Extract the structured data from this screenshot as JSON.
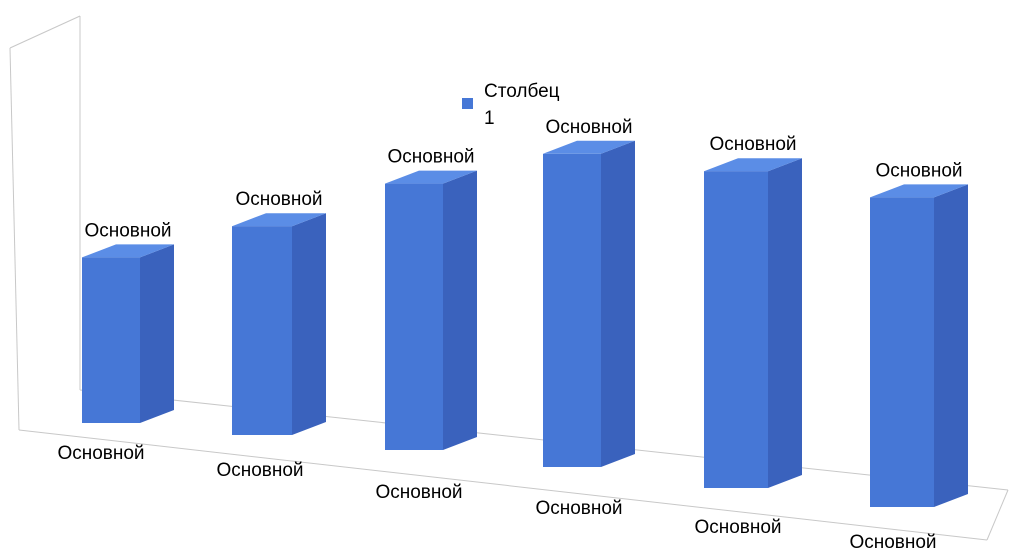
{
  "chart_data": {
    "type": "bar",
    "style": "3d-column",
    "categories": [
      "Основной",
      "Основной",
      "Основной",
      "Основной",
      "Основной",
      "Основной"
    ],
    "series": [
      {
        "name": "Столбец 1",
        "values": [
          46,
          58,
          74,
          87,
          88,
          86
        ],
        "data_labels": [
          "Основной",
          "Основной",
          "Основной",
          "Основной",
          "Основной",
          "Основной"
        ]
      }
    ],
    "ylim": [
      0,
      100
    ],
    "grid": false,
    "legend": "top-center",
    "colors": {
      "bar_front": "#4677D6",
      "bar_top": "#5B8DE6",
      "bar_side": "#3A62BD",
      "walls": "#C8C8C8"
    }
  }
}
